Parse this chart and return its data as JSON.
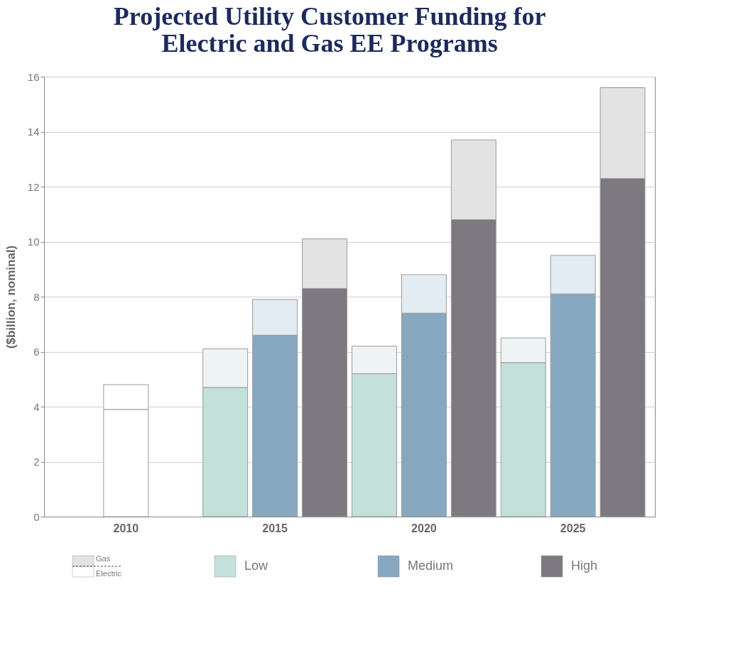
{
  "chart_data": {
    "type": "bar",
    "title": "Projected Utility Customer Funding for Electric and Gas EE Programs",
    "ylabel": "($billion, nominal)",
    "categories": [
      null,
      "2010",
      null,
      null,
      "2015",
      null,
      null,
      "2020",
      null,
      null,
      "2025",
      null
    ],
    "stacked": true,
    "series": [
      {
        "name": "Electric",
        "color": "#ffffff",
        "values": [
          null,
          3.9,
          null,
          null,
          null,
          null,
          null,
          null,
          null,
          null,
          null,
          null
        ]
      },
      {
        "name": "Low",
        "color": "#c3e0db",
        "values": [
          null,
          null,
          null,
          4.7,
          null,
          null,
          5.2,
          null,
          null,
          5.6,
          null,
          null
        ]
      },
      {
        "name": "Medium",
        "color": "#86a8c1",
        "values": [
          null,
          null,
          null,
          null,
          6.6,
          null,
          null,
          7.4,
          null,
          null,
          8.1,
          null
        ]
      },
      {
        "name": "High",
        "color": "#7e7880",
        "values": [
          null,
          null,
          null,
          null,
          null,
          8.3,
          null,
          null,
          10.8,
          null,
          null,
          12.3
        ]
      },
      {
        "name": "Gas",
        "color": "#e3e3e4",
        "colors": [
          null,
          "#ffffff",
          null,
          "#eef4f3",
          "#e2ecf2",
          "#e3e3e4",
          "#eef4f3",
          "#e2ecf2",
          "#e3e3e4",
          "#eef4f3",
          "#e2ecf2",
          "#e3e3e4"
        ],
        "values": [
          null,
          0.9,
          null,
          1.4,
          1.3,
          1.8,
          1.0,
          1.4,
          2.9,
          0.9,
          1.4,
          3.3
        ]
      }
    ],
    "ylim": [
      0,
      16
    ],
    "yticks": [
      0,
      2,
      4,
      6,
      8,
      10,
      12,
      14,
      16
    ],
    "grid": "y",
    "legend": "bottom"
  }
}
